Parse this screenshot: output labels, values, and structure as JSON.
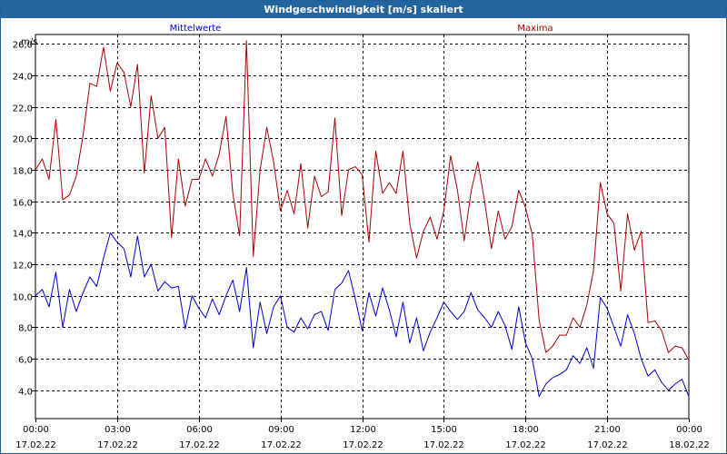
{
  "window": {
    "title": "Windgeschwindigkeit [m/s] skaliert"
  },
  "chart_data": {
    "type": "line",
    "title": "Windgeschwindigkeit [m/s] skaliert",
    "ylabel": "m/s",
    "ylim": [
      2.2,
      26.6
    ],
    "xlim": [
      0,
      24
    ],
    "yticks": [
      4.0,
      6.0,
      8.0,
      10.0,
      12.0,
      14.0,
      16.0,
      18.0,
      20.0,
      22.0,
      24.0,
      26.0
    ],
    "ytick_labels": [
      "4,0",
      "6,0",
      "8,0",
      "10,0",
      "12,0",
      "14,0",
      "16,0",
      "18,0",
      "20,0",
      "22,0",
      "24,0",
      "26,0"
    ],
    "xticks": [
      {
        "time": "00:00",
        "date": "17.02.22"
      },
      {
        "time": "03:00",
        "date": "17.02.22"
      },
      {
        "time": "06:00",
        "date": "17.02.22"
      },
      {
        "time": "09:00",
        "date": "17.02.22"
      },
      {
        "time": "12:00",
        "date": "17.02.22"
      },
      {
        "time": "15:00",
        "date": "17.02.22"
      },
      {
        "time": "18:00",
        "date": "17.02.22"
      },
      {
        "time": "21:00",
        "date": "17.02.22"
      },
      {
        "time": "00:00",
        "date": "18.02.22"
      }
    ],
    "grid": true,
    "series": [
      {
        "name": "Mittelwerte",
        "color": "#0000cc",
        "x": [
          0,
          0.25,
          0.5,
          0.75,
          1.0,
          1.25,
          1.5,
          1.75,
          2.0,
          2.25,
          2.5,
          2.75,
          3.0,
          3.25,
          3.5,
          3.75,
          4.0,
          4.25,
          4.5,
          4.75,
          5.0,
          5.25,
          5.5,
          5.75,
          6.0,
          6.25,
          6.5,
          6.75,
          7.0,
          7.25,
          7.5,
          7.75,
          8.0,
          8.25,
          8.5,
          8.75,
          9.0,
          9.25,
          9.5,
          9.75,
          10.0,
          10.25,
          10.5,
          10.75,
          11.0,
          11.25,
          11.5,
          11.75,
          12.0,
          12.25,
          12.5,
          12.75,
          13.0,
          13.25,
          13.5,
          13.75,
          14.0,
          14.25,
          14.5,
          14.75,
          15.0,
          15.25,
          15.5,
          15.75,
          16.0,
          16.25,
          16.5,
          16.75,
          17.0,
          17.25,
          17.5,
          17.75,
          18.0,
          18.25,
          18.5,
          18.75,
          19.0,
          19.25,
          19.5,
          19.75,
          20.0,
          20.25,
          20.5,
          20.75,
          21.0,
          21.25,
          21.5,
          21.75,
          22.0,
          22.25,
          22.5,
          22.75,
          23.0,
          23.25,
          23.5,
          23.75,
          24.0
        ],
        "values": [
          10.0,
          10.4,
          9.3,
          11.5,
          8.0,
          10.4,
          9.0,
          10.2,
          11.2,
          10.6,
          12.4,
          14.0,
          13.4,
          13.0,
          11.2,
          13.8,
          11.2,
          12.0,
          10.3,
          10.9,
          10.5,
          10.6,
          7.9,
          10.0,
          9.2,
          8.6,
          9.8,
          8.8,
          10.0,
          11.0,
          9.0,
          11.8,
          6.7,
          9.6,
          7.6,
          9.3,
          10.0,
          8.0,
          7.7,
          8.6,
          7.9,
          8.8,
          9.0,
          7.8,
          10.4,
          10.8,
          11.6,
          9.8,
          7.8,
          10.2,
          8.7,
          10.5,
          9.1,
          7.4,
          9.6,
          7.0,
          8.6,
          6.5,
          7.7,
          8.6,
          9.6,
          9.0,
          8.5,
          9.0,
          10.2,
          9.1,
          8.6,
          8.0,
          9.0,
          8.1,
          6.6,
          9.3,
          7.0,
          6.0,
          3.6,
          4.4,
          4.8,
          5.0,
          5.3,
          6.2,
          5.7,
          6.7,
          5.4,
          9.9,
          9.2,
          8.0,
          6.8,
          8.8,
          7.6,
          6.0,
          4.9,
          5.3,
          4.5,
          4.0,
          4.4,
          4.7,
          3.6
        ]
      },
      {
        "name": "Maxima",
        "color": "#aa0000",
        "x": [
          0,
          0.25,
          0.5,
          0.75,
          1.0,
          1.25,
          1.5,
          1.75,
          2.0,
          2.25,
          2.5,
          2.75,
          3.0,
          3.25,
          3.5,
          3.75,
          4.0,
          4.25,
          4.5,
          4.75,
          5.0,
          5.25,
          5.5,
          5.75,
          6.0,
          6.25,
          6.5,
          6.75,
          7.0,
          7.25,
          7.5,
          7.75,
          8.0,
          8.25,
          8.5,
          8.75,
          9.0,
          9.25,
          9.5,
          9.75,
          10.0,
          10.25,
          10.5,
          10.75,
          11.0,
          11.25,
          11.5,
          11.75,
          12.0,
          12.25,
          12.5,
          12.75,
          13.0,
          13.25,
          13.5,
          13.75,
          14.0,
          14.25,
          14.5,
          14.75,
          15.0,
          15.25,
          15.5,
          15.75,
          16.0,
          16.25,
          16.5,
          16.75,
          17.0,
          17.25,
          17.5,
          17.75,
          18.0,
          18.25,
          18.5,
          18.75,
          19.0,
          19.25,
          19.5,
          19.75,
          20.0,
          20.25,
          20.5,
          20.75,
          21.0,
          21.25,
          21.5,
          21.75,
          22.0,
          22.25,
          22.5,
          22.75,
          23.0,
          23.25,
          23.5,
          23.75,
          24.0
        ],
        "values": [
          18.0,
          18.7,
          17.4,
          21.2,
          16.1,
          16.4,
          17.6,
          20.2,
          23.5,
          23.3,
          25.8,
          23.0,
          24.8,
          24.2,
          22.0,
          24.7,
          17.8,
          22.7,
          20.0,
          20.7,
          13.7,
          18.7,
          15.7,
          17.4,
          17.4,
          18.7,
          17.6,
          19.0,
          21.4,
          16.5,
          13.8,
          26.2,
          12.5,
          18.0,
          20.7,
          18.5,
          15.4,
          16.7,
          15.2,
          18.4,
          14.3,
          17.6,
          16.3,
          16.6,
          21.3,
          15.1,
          18.0,
          18.2,
          17.7,
          13.4,
          19.2,
          16.5,
          17.2,
          16.5,
          19.2,
          14.6,
          12.4,
          14.1,
          15.0,
          13.6,
          15.4,
          18.9,
          16.7,
          13.5,
          16.6,
          18.5,
          16.0,
          13.0,
          15.4,
          13.6,
          14.4,
          16.7,
          15.6,
          13.9,
          8.5,
          6.4,
          6.8,
          7.5,
          7.5,
          8.6,
          8.0,
          9.4,
          11.6,
          17.2,
          15.2,
          14.6,
          10.3,
          15.2,
          12.9,
          14.1,
          8.3,
          8.4,
          7.8,
          6.4,
          6.8,
          6.7,
          5.9
        ]
      }
    ]
  }
}
